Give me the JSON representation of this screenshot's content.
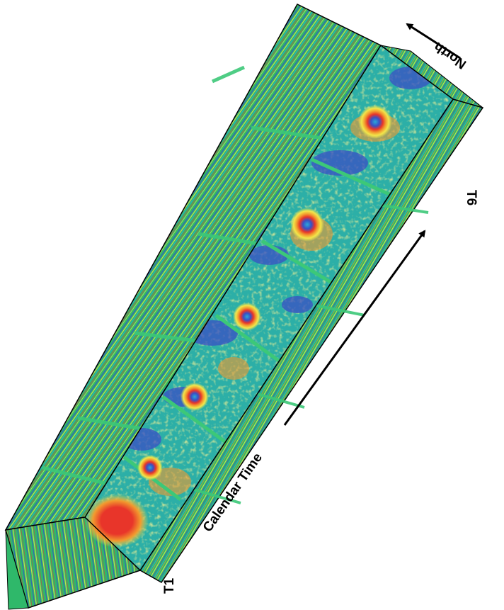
{
  "labels": {
    "north": "North",
    "calendar_time": "Calendar Time",
    "start_slice": "T1",
    "end_slice": "T6"
  },
  "colors": {
    "background": "#2fb86a",
    "low": "#3a4fc4",
    "mid_low": "#2aa8d8",
    "mid": "#f2e64a",
    "high": "#f29a2e",
    "peak": "#e8352a",
    "edge": "#000000"
  },
  "time_slices": [
    {
      "index": 1,
      "anomaly": "broad"
    },
    {
      "index": 2,
      "anomaly": "ring"
    },
    {
      "index": 3,
      "anomaly": "ring"
    },
    {
      "index": 4,
      "anomaly": "ring"
    },
    {
      "index": 5,
      "anomaly": "ring"
    },
    {
      "index": 6,
      "anomaly": "ring"
    }
  ]
}
